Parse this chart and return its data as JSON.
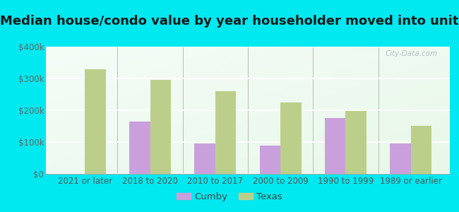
{
  "title": "Median house/condo value by year householder moved into unit",
  "categories": [
    "2021 or later",
    "2018 to 2020",
    "2010 to 2017",
    "2000 to 2009",
    "1990 to 1999",
    "1989 or earlier"
  ],
  "cumby_values": [
    null,
    165000,
    95000,
    88000,
    175000,
    95000
  ],
  "texas_values": [
    330000,
    295000,
    260000,
    225000,
    198000,
    152000
  ],
  "cumby_color": "#c9a0dc",
  "texas_color": "#bccf8a",
  "background_outer": "#00e8f0",
  "background_chart_topleft": "#e8f8e8",
  "background_chart_bottomright": "#f8fff8",
  "ylim": [
    0,
    400000
  ],
  "yticks": [
    0,
    100000,
    200000,
    300000,
    400000
  ],
  "ytick_labels": [
    "$0",
    "$100k",
    "$200k",
    "$300k",
    "$400k"
  ],
  "bar_width": 0.32,
  "legend_labels": [
    "Cumby",
    "Texas"
  ],
  "title_fontsize": 13,
  "tick_fontsize": 8.5,
  "legend_fontsize": 9.5
}
